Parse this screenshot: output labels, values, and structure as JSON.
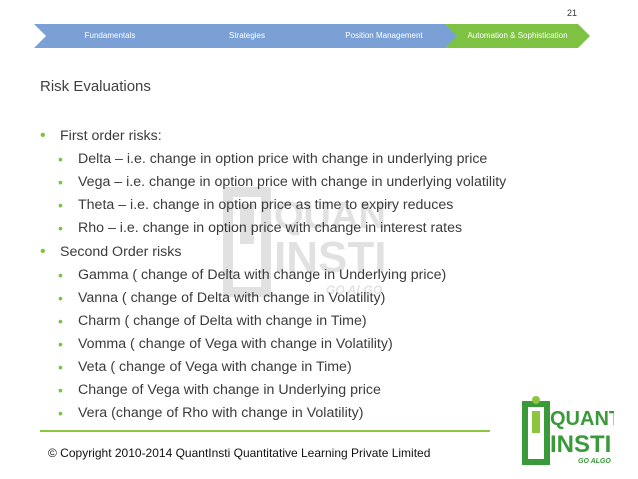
{
  "page_number": "21",
  "nav_steps": [
    {
      "label": "Fundamentals",
      "active": false
    },
    {
      "label": "Strategies",
      "active": false
    },
    {
      "label": "Position Management",
      "active": false
    },
    {
      "label": "Automation & Sophistication",
      "active": true
    }
  ],
  "colors": {
    "step_inactive": "#7aa0d6",
    "step_active": "#7dc242",
    "bullet": "#7cc242",
    "footer_line": "#8cc63f",
    "logo_green": "#3a9a3a",
    "logo_lime": "#8cc63f"
  },
  "title": "Risk Evaluations",
  "groups": [
    {
      "heading": "First order risks:",
      "items": [
        "Delta – i.e. change in option price with change in underlying price",
        "Vega – i.e. change in option price with change in underlying volatility",
        "Theta – i.e. change in option price as time to expiry reduces",
        "Rho – i.e. change in option price with change in interest rates"
      ]
    },
    {
      "heading": "Second Order risks",
      "items": [
        "Gamma ( change of Delta with change in Underlying price)",
        "Vanna ( change of Delta with change in Volatility)",
        "Charm ( change of Delta with change in Time)",
        "Vomma ( change of Vega with change in Volatility)",
        "Veta ( change of Vega with change in Time)",
        "Change of Vega with change in Underlying price",
        "Vera (change of Rho with change in Volatility)"
      ]
    }
  ],
  "copyright": "© Copyright 2010-2014 QuantInsti Quantitative Learning Private Limited",
  "logo": {
    "word1": "QUANT",
    "word2": "INSTI",
    "tagline": "GO ALGO"
  }
}
